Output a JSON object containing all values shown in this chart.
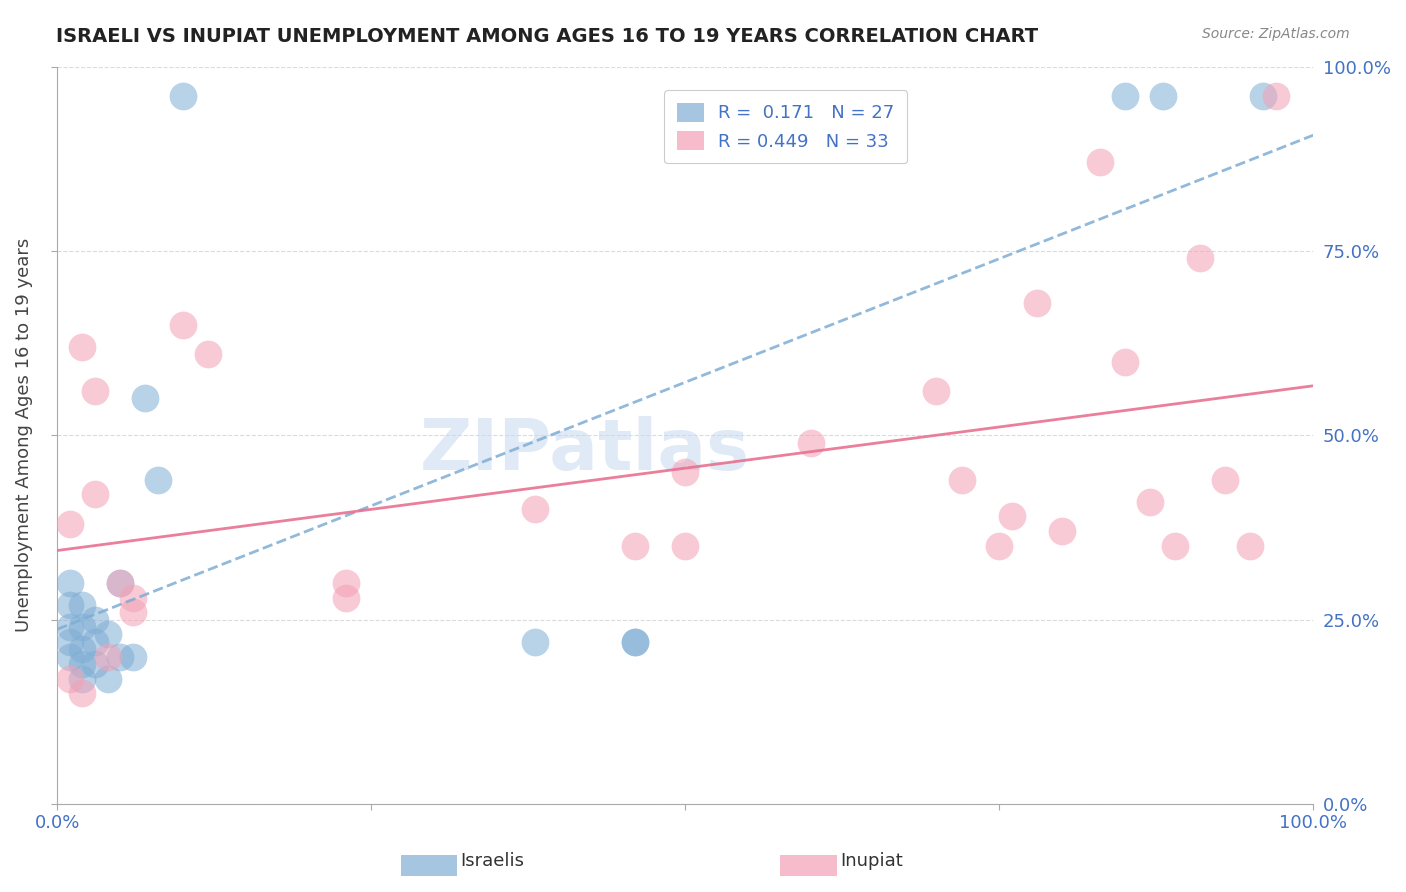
{
  "title": "ISRAELI VS INUPIAT UNEMPLOYMENT AMONG AGES 16 TO 19 YEARS CORRELATION CHART",
  "source_text": "Source: ZipAtlas.com",
  "xlabel": "",
  "ylabel": "Unemployment Among Ages 16 to 19 years",
  "xlim": [
    0,
    1
  ],
  "ylim": [
    0,
    1
  ],
  "xtick_labels": [
    "0.0%",
    "100.0%"
  ],
  "ytick_labels_right": [
    "0.0%",
    "25.0%",
    "50.0%",
    "75.0%",
    "100.0%"
  ],
  "legend_r_israeli": "R =  0.171",
  "legend_n_israeli": "N = 27",
  "legend_r_inupiat": "R = 0.449",
  "legend_n_inupiat": "N = 33",
  "color_israeli": "#7fadd4",
  "color_inupiat": "#f4a0b5",
  "color_title": "#222222",
  "color_axis_label": "#555555",
  "color_tick_label_blue": "#4472c4",
  "color_grid": "#cccccc",
  "israeli_x": [
    0.01,
    0.01,
    0.01,
    0.01,
    0.01,
    0.02,
    0.02,
    0.02,
    0.02,
    0.02,
    0.03,
    0.03,
    0.03,
    0.04,
    0.04,
    0.05,
    0.05,
    0.06,
    0.07,
    0.08,
    0.1,
    0.38,
    0.46,
    0.46,
    0.85,
    0.88,
    0.96
  ],
  "israeli_y": [
    0.2,
    0.22,
    0.24,
    0.27,
    0.3,
    0.17,
    0.19,
    0.21,
    0.24,
    0.27,
    0.19,
    0.22,
    0.25,
    0.17,
    0.23,
    0.2,
    0.3,
    0.2,
    0.55,
    0.44,
    0.96,
    0.22,
    0.22,
    0.22,
    0.96,
    0.96,
    0.96
  ],
  "inupiat_x": [
    0.01,
    0.01,
    0.02,
    0.02,
    0.03,
    0.03,
    0.04,
    0.05,
    0.06,
    0.06,
    0.1,
    0.12,
    0.23,
    0.23,
    0.38,
    0.46,
    0.5,
    0.5,
    0.6,
    0.7,
    0.72,
    0.75,
    0.76,
    0.78,
    0.8,
    0.83,
    0.85,
    0.87,
    0.89,
    0.91,
    0.93,
    0.95,
    0.97
  ],
  "inupiat_y": [
    0.38,
    0.17,
    0.62,
    0.15,
    0.42,
    0.56,
    0.2,
    0.3,
    0.28,
    0.26,
    0.65,
    0.61,
    0.28,
    0.3,
    0.4,
    0.35,
    0.45,
    0.35,
    0.49,
    0.56,
    0.44,
    0.35,
    0.39,
    0.68,
    0.37,
    0.87,
    0.6,
    0.41,
    0.35,
    0.74,
    0.44,
    0.35,
    0.96
  ],
  "watermark_text": "ZIPatlas",
  "figsize": [
    14.06,
    8.92
  ],
  "dpi": 100
}
